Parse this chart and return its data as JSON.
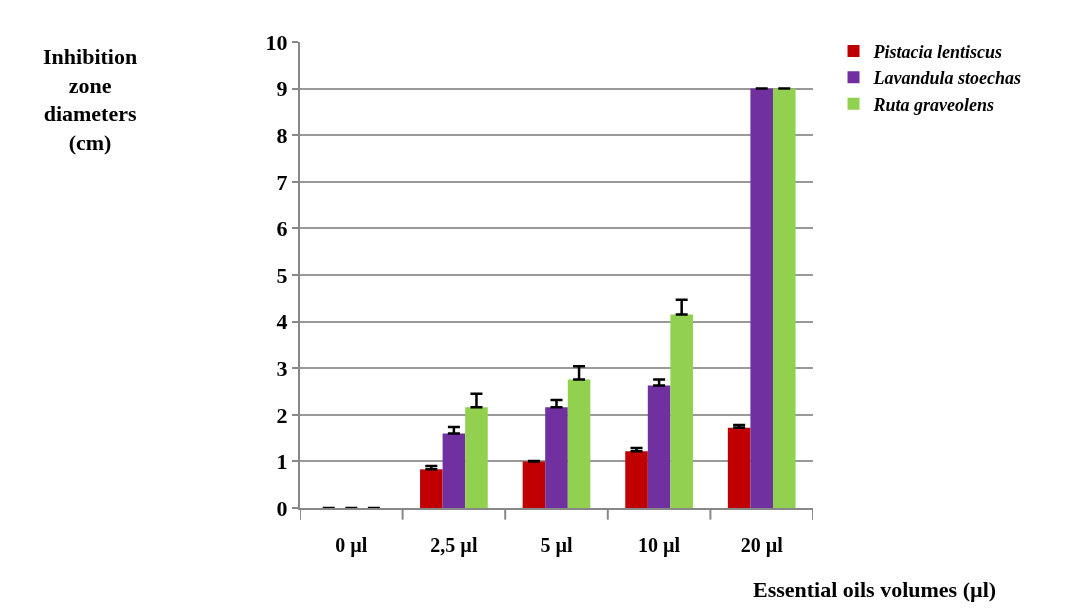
{
  "chart_data": {
    "type": "bar",
    "xlabel": "Essential oils volumes (µl)",
    "annotations": [
      "Inhibition\nzone\ndiameters\n(cm)"
    ],
    "categories": [
      "0 µl",
      "2,5 µl",
      "5 µl",
      "10 µl",
      "20 µl"
    ],
    "series": [
      {
        "name": "Pistacia lentiscus",
        "color": "#c00000",
        "values": [
          0,
          0.83,
          1.0,
          1.22,
          1.72
        ],
        "errors": [
          null,
          [
            0.83,
            0.9
          ],
          [
            1.0,
            1.01
          ],
          [
            1.22,
            1.29
          ],
          [
            1.72,
            1.78
          ]
        ]
      },
      {
        "name": "Lavandula stoechas",
        "color": "#7030a0",
        "values": [
          0,
          1.6,
          2.16,
          2.63,
          9
        ],
        "errors": [
          null,
          [
            1.6,
            1.74
          ],
          [
            2.16,
            2.32
          ],
          [
            2.63,
            2.76
          ],
          [
            9,
            9
          ]
        ]
      },
      {
        "name": "Ruta graveolens",
        "color": "#92d050",
        "values": [
          0,
          2.16,
          2.76,
          4.15,
          9
        ],
        "errors": [
          null,
          [
            2.16,
            2.45
          ],
          [
            2.76,
            3.04
          ],
          [
            4.15,
            4.47
          ],
          [
            9,
            9
          ]
        ]
      }
    ],
    "ylim": [
      0,
      10
    ],
    "yticks": [
      0,
      1,
      2,
      3,
      4,
      5,
      6,
      7,
      8,
      9,
      10
    ],
    "grid": "y",
    "legend": "top right"
  }
}
